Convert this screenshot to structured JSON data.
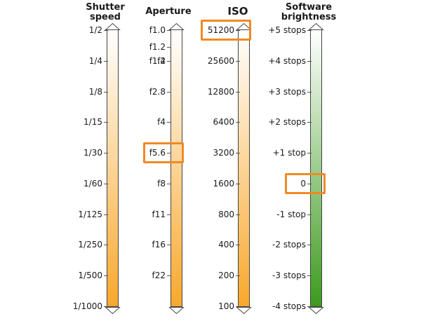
{
  "columns": [
    {
      "key": "shutter",
      "title": [
        "Shutter",
        "speed"
      ],
      "labels": [
        "1/2",
        "1/4",
        "1/8",
        "1/15",
        "1/30",
        "1/60",
        "1/125",
        "1/250",
        "1/500",
        "1/1000"
      ],
      "gradient": [
        "#ffffff",
        "#f9a82c"
      ],
      "highlight_index": null
    },
    {
      "key": "aperture",
      "title": [
        "Aperture"
      ],
      "labels": [
        "f1.0",
        "f1.2",
        "f1.4",
        "f2",
        "f2.8",
        "f4",
        "f5.6",
        "f8",
        "f11",
        "f16",
        "f22"
      ],
      "gradient": [
        "#ffffff",
        "#f9a82c"
      ],
      "highlight_index": 6
    },
    {
      "key": "iso",
      "title": [
        "ISO"
      ],
      "labels": [
        "51200",
        "25600",
        "12800",
        "6400",
        "3200",
        "1600",
        "800",
        "400",
        "200",
        "100"
      ],
      "gradient": [
        "#ffffff",
        "#f9a82c"
      ],
      "highlight_index": 0
    },
    {
      "key": "brightness",
      "title": [
        "Software",
        "brightness"
      ],
      "labels": [
        "+5 stops",
        "+4 stops",
        "+3 stops",
        "+2 stops",
        "+1 stop",
        "0",
        "-1 stop",
        "-2 stops",
        "-3 stops",
        "-4 stops"
      ],
      "gradient": [
        "#ffffff",
        "#3d9a1e"
      ],
      "highlight_index": 5
    }
  ],
  "colors": {
    "highlight": "#f08a24",
    "arrow": "#444444"
  }
}
